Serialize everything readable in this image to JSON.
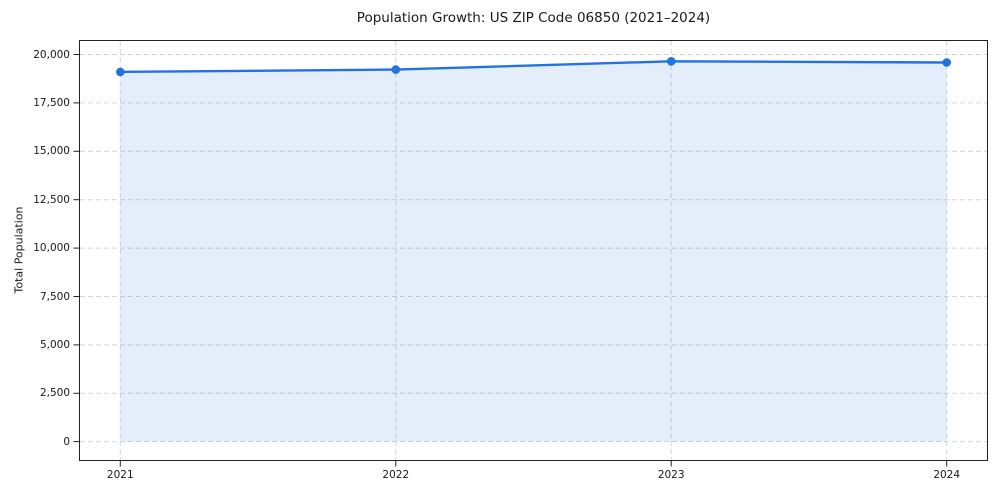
{
  "figure": {
    "title": "Population Growth: US ZIP Code 06850 (2021–2024)"
  },
  "chart_data": {
    "type": "area",
    "title": "Population Growth: US ZIP Code 06850 (2021–2024)",
    "xlabel": "",
    "ylabel": "Total Population",
    "x": [
      2021,
      2022,
      2023,
      2024
    ],
    "x_labels": [
      "2021",
      "2022",
      "2023",
      "2024"
    ],
    "values": [
      19100,
      19220,
      19650,
      19590
    ],
    "series": [
      {
        "name": "Total Population",
        "values": [
          19100,
          19220,
          19650,
          19590
        ]
      }
    ],
    "yticks": [
      0,
      2500,
      5000,
      7500,
      10000,
      12500,
      15000,
      17500,
      20000
    ],
    "ytick_labels": [
      "0",
      "2,500",
      "5,000",
      "7,500",
      "10,000",
      "12,500",
      "15,000",
      "17,500",
      "20,000"
    ],
    "ylim": [
      -1000,
      20750
    ],
    "xmargin": 0.05,
    "grid": true,
    "grid_style": "dashed",
    "legend_position": "none",
    "line_color": "#2273e2",
    "fill_color_rgba": "rgba(34, 115, 226, 0.12)",
    "grid_color": "#d6d6d6",
    "spine_color": "#222222",
    "marker": "circle",
    "marker_radius": 4.3,
    "line_width": 2.4
  }
}
